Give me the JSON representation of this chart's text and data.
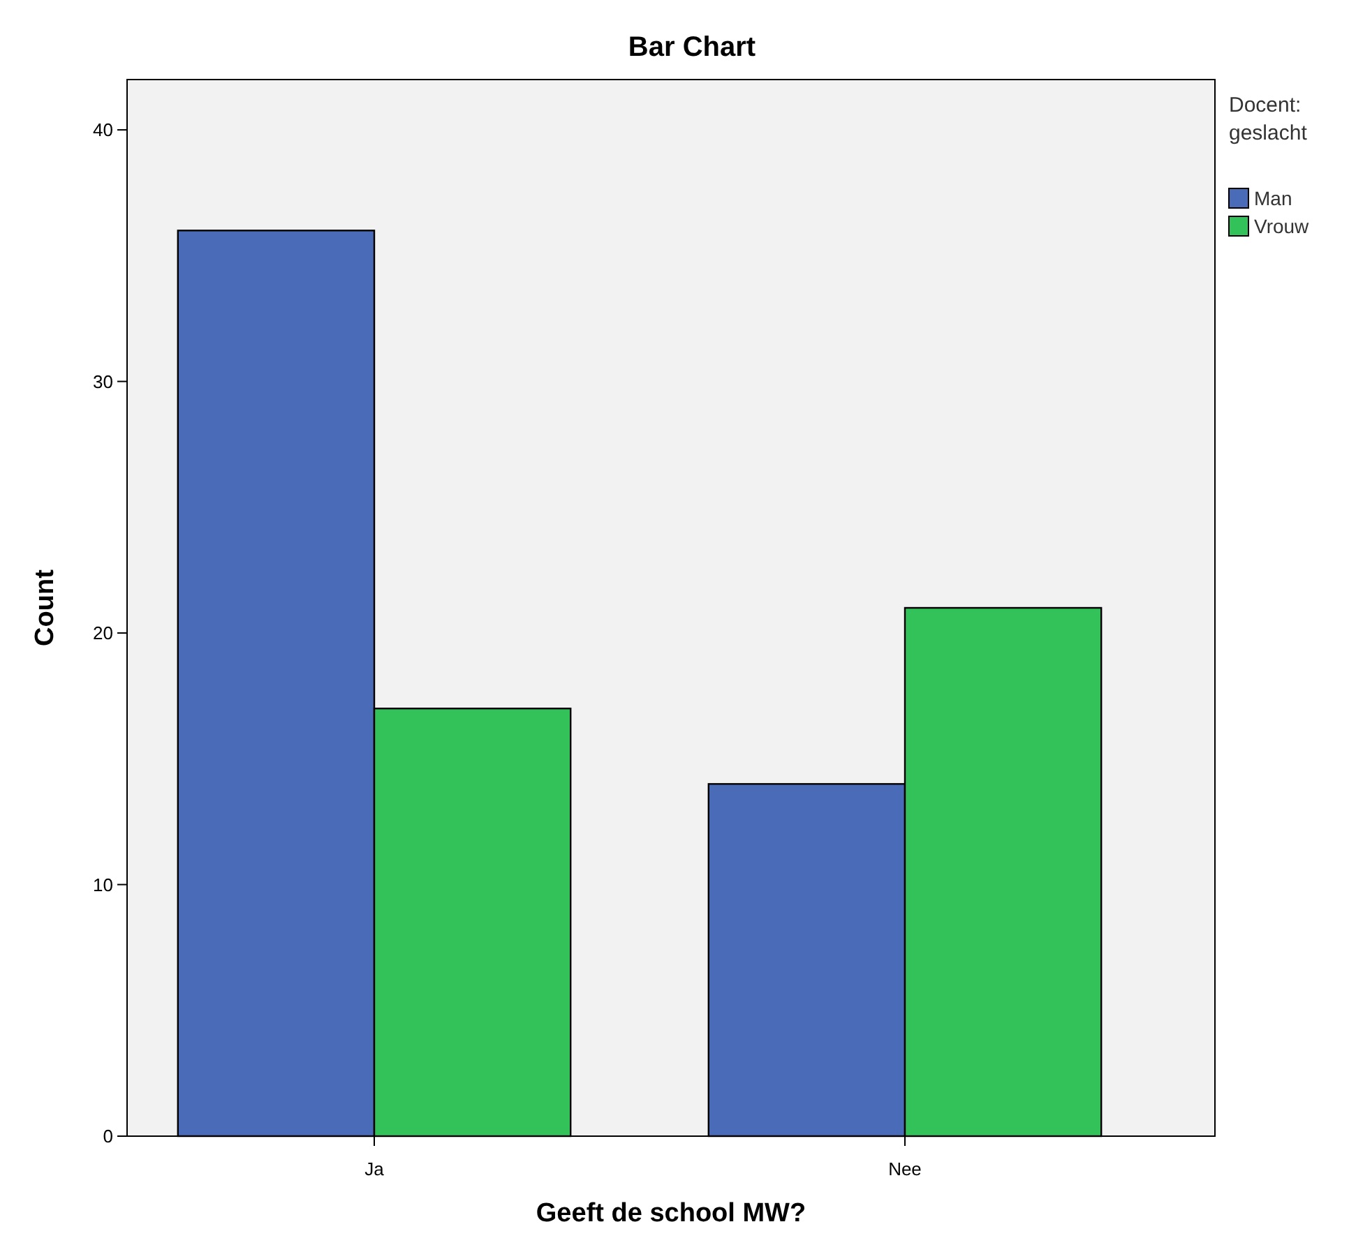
{
  "chart_data": {
    "type": "bar",
    "title": "Bar Chart",
    "xlabel": "Geeft de school MW?",
    "ylabel": "Count",
    "legend_title": "Docent: geslacht",
    "categories": [
      "Ja",
      "Nee"
    ],
    "series": [
      {
        "name": "Man",
        "color": "#4a6bb8",
        "values": [
          36,
          14
        ]
      },
      {
        "name": "Vrouw",
        "color": "#33c15a",
        "values": [
          17,
          21
        ]
      }
    ],
    "ylim": [
      0,
      42
    ],
    "yticks": [
      0,
      10,
      20,
      30,
      40
    ],
    "grid": false,
    "legend": "top right"
  }
}
